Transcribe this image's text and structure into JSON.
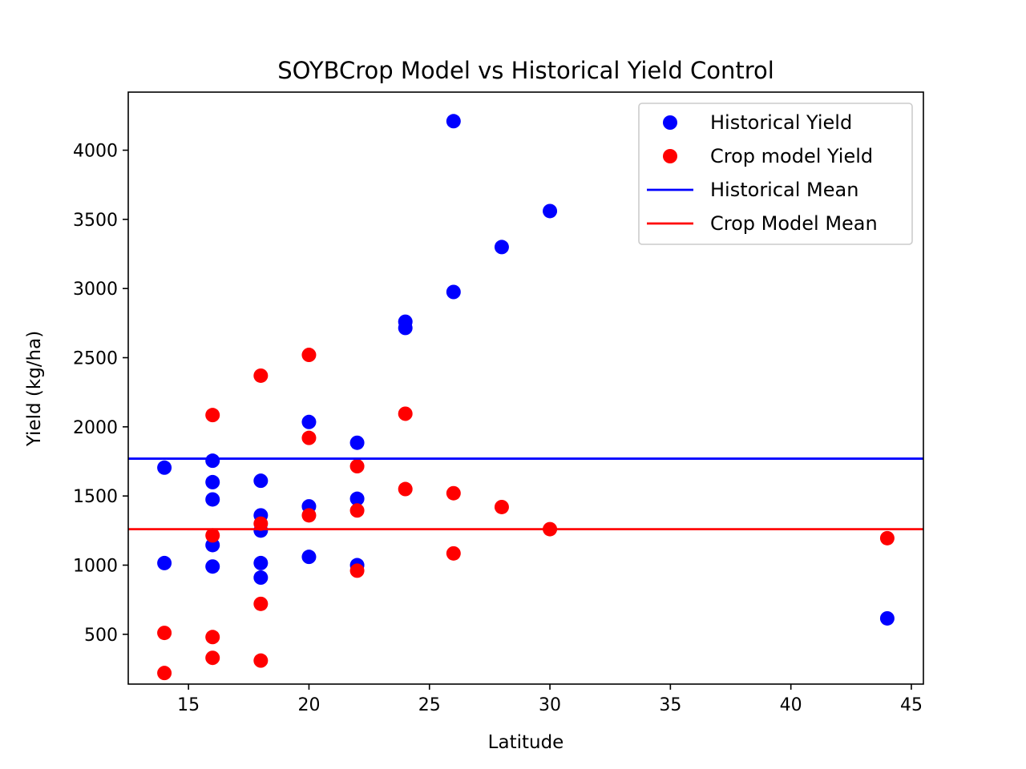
{
  "chart_data": {
    "type": "scatter",
    "title": "SOYBCrop Model vs Historical Yield Control",
    "xlabel": "Latitude",
    "ylabel": "Yield (kg/ha)",
    "xlim": [
      12.5,
      45.5
    ],
    "ylim": [
      140,
      4420
    ],
    "xticks": [
      15,
      20,
      25,
      30,
      35,
      40,
      45
    ],
    "yticks": [
      500,
      1000,
      1500,
      2000,
      2500,
      3000,
      3500,
      4000
    ],
    "grid": false,
    "legend_position": "top-right",
    "series": [
      {
        "name": "Historical Yield",
        "kind": "scatter",
        "color": "#0000ff",
        "points": [
          [
            14,
            1705
          ],
          [
            14,
            1015
          ],
          [
            16,
            1755
          ],
          [
            16,
            1600
          ],
          [
            16,
            1475
          ],
          [
            16,
            1145
          ],
          [
            16,
            990
          ],
          [
            18,
            1610
          ],
          [
            18,
            1360
          ],
          [
            18,
            1250
          ],
          [
            18,
            1015
          ],
          [
            18,
            910
          ],
          [
            20,
            2035
          ],
          [
            20,
            1425
          ],
          [
            20,
            1060
          ],
          [
            22,
            1885
          ],
          [
            22,
            1480
          ],
          [
            22,
            1000
          ],
          [
            24,
            2760
          ],
          [
            24,
            2715
          ],
          [
            26,
            4210
          ],
          [
            26,
            2975
          ],
          [
            28,
            3300
          ],
          [
            30,
            3560
          ],
          [
            44,
            615
          ]
        ]
      },
      {
        "name": "Crop model Yield",
        "kind": "scatter",
        "color": "#ff0000",
        "points": [
          [
            14,
            510
          ],
          [
            14,
            220
          ],
          [
            16,
            2085
          ],
          [
            16,
            1215
          ],
          [
            16,
            480
          ],
          [
            16,
            330
          ],
          [
            18,
            2370
          ],
          [
            18,
            1300
          ],
          [
            18,
            720
          ],
          [
            18,
            310
          ],
          [
            20,
            2520
          ],
          [
            20,
            1920
          ],
          [
            20,
            1360
          ],
          [
            22,
            1715
          ],
          [
            22,
            1395
          ],
          [
            22,
            960
          ],
          [
            24,
            2095
          ],
          [
            24,
            1550
          ],
          [
            26,
            1520
          ],
          [
            26,
            1085
          ],
          [
            28,
            1420
          ],
          [
            30,
            1260
          ],
          [
            44,
            1195
          ]
        ]
      },
      {
        "name": "Historical Mean",
        "kind": "hline",
        "color": "#0000ff",
        "y": 1770
      },
      {
        "name": "Crop Model Mean",
        "kind": "hline",
        "color": "#ff0000",
        "y": 1260
      }
    ]
  }
}
